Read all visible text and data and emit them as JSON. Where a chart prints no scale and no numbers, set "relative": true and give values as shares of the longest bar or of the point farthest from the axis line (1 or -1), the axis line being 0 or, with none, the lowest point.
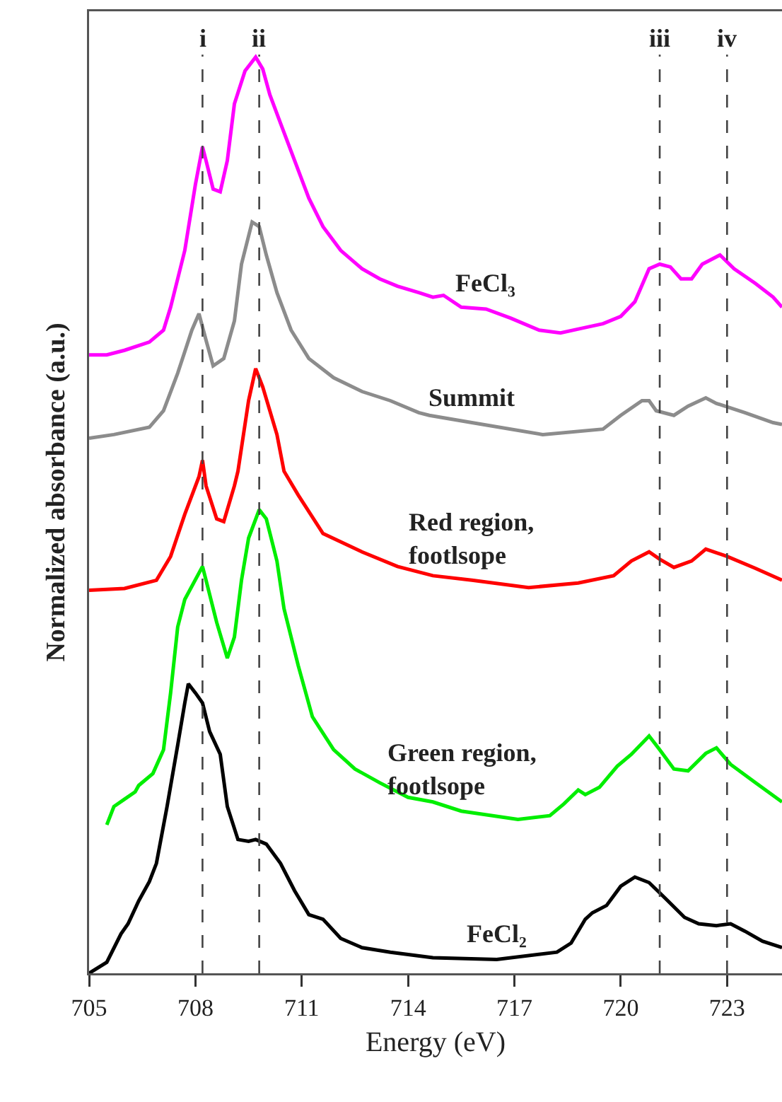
{
  "chart_data": {
    "type": "line",
    "relative": true,
    "xlabel": "Energy (eV)",
    "ylabel": "Normalized absorbance (a.u.)",
    "xlim": [
      705,
      724.55
    ],
    "xticks": [
      705,
      708,
      711,
      714,
      717,
      720,
      723
    ],
    "tick_labels": "x",
    "series": [
      {
        "name": "FeCl₃",
        "color": "#ff00ff",
        "x": [
          705.0,
          705.5,
          706.0,
          706.7,
          707.1,
          707.3,
          707.7,
          708.0,
          708.2,
          708.3,
          708.5,
          708.7,
          708.9,
          709.1,
          709.4,
          709.7,
          709.9,
          710.1,
          710.4,
          710.8,
          711.2,
          711.6,
          712.1,
          712.7,
          713.2,
          713.7,
          714.3,
          714.7,
          715.0,
          715.5,
          716.2,
          716.9,
          717.7,
          718.3,
          718.9,
          719.5,
          720.0,
          720.4,
          720.8,
          721.1,
          721.4,
          721.7,
          722.0,
          722.3,
          722.8,
          723.2,
          723.8,
          724.3,
          724.55
        ],
        "values": [
          0.675,
          0.675,
          0.68,
          0.689,
          0.702,
          0.727,
          0.789,
          0.861,
          0.902,
          0.887,
          0.856,
          0.853,
          0.887,
          0.949,
          0.985,
          1,
          0.987,
          0.959,
          0.928,
          0.887,
          0.846,
          0.815,
          0.789,
          0.769,
          0.758,
          0.75,
          0.743,
          0.738,
          0.74,
          0.727,
          0.725,
          0.715,
          0.702,
          0.699,
          0.704,
          0.709,
          0.717,
          0.733,
          0.769,
          0.774,
          0.771,
          0.758,
          0.758,
          0.774,
          0.784,
          0.769,
          0.753,
          0.738,
          0.727
        ]
      },
      {
        "name": "Summit",
        "color": "#8c8c8c",
        "x": [
          705.0,
          705.7,
          706.7,
          707.1,
          707.5,
          707.9,
          708.1,
          708.3,
          708.5,
          708.8,
          709.1,
          709.3,
          709.6,
          709.8,
          710.0,
          710.3,
          710.7,
          711.2,
          711.9,
          712.7,
          713.5,
          714.3,
          714.6,
          715.8,
          717.8,
          719.5,
          720.0,
          720.6,
          720.8,
          721.0,
          721.5,
          721.9,
          722.4,
          722.7,
          723.5,
          724.3,
          724.55
        ],
        "values": [
          0.584,
          0.588,
          0.596,
          0.614,
          0.655,
          0.702,
          0.72,
          0.691,
          0.663,
          0.671,
          0.712,
          0.774,
          0.82,
          0.815,
          0.784,
          0.743,
          0.702,
          0.671,
          0.65,
          0.635,
          0.625,
          0.612,
          0.609,
          0.601,
          0.588,
          0.594,
          0.609,
          0.625,
          0.625,
          0.614,
          0.609,
          0.619,
          0.628,
          0.622,
          0.612,
          0.601,
          0.599
        ]
      },
      {
        "name": "Red region,\nfootlsope",
        "color": "#ff0000",
        "x": [
          705.0,
          706.0,
          706.9,
          707.3,
          707.7,
          708.1,
          708.2,
          708.3,
          708.6,
          708.8,
          709.1,
          709.2,
          709.5,
          709.7,
          709.9,
          710.3,
          710.5,
          710.9,
          711.6,
          712.7,
          713.7,
          714.7,
          715.8,
          717.4,
          718.8,
          719.8,
          720.3,
          720.8,
          721.1,
          721.5,
          722.0,
          722.4,
          723.0,
          723.8,
          724.55
        ],
        "values": [
          0.418,
          0.42,
          0.429,
          0.455,
          0.501,
          0.542,
          0.56,
          0.532,
          0.496,
          0.493,
          0.532,
          0.548,
          0.625,
          0.66,
          0.64,
          0.588,
          0.548,
          0.522,
          0.48,
          0.46,
          0.444,
          0.434,
          0.429,
          0.421,
          0.426,
          0.434,
          0.45,
          0.46,
          0.452,
          0.443,
          0.45,
          0.463,
          0.455,
          0.442,
          0.429
        ]
      },
      {
        "name": "Green region,\nfootlsope",
        "color": "#00ee00",
        "x": [
          705.5,
          705.7,
          706.0,
          706.3,
          706.4,
          706.8,
          707.1,
          707.3,
          707.5,
          707.7,
          708.2,
          708.3,
          708.6,
          708.9,
          709.1,
          709.3,
          709.5,
          709.8,
          710.0,
          710.3,
          710.5,
          710.9,
          711.3,
          711.9,
          712.5,
          713.2,
          714.0,
          714.7,
          715.5,
          717.1,
          718.0,
          718.4,
          718.8,
          719.0,
          719.4,
          719.9,
          720.3,
          720.8,
          721.1,
          721.5,
          721.9,
          722.4,
          722.7,
          723.1,
          723.8,
          724.55
        ],
        "values": [
          0.162,
          0.182,
          0.19,
          0.198,
          0.205,
          0.218,
          0.244,
          0.306,
          0.378,
          0.408,
          0.444,
          0.429,
          0.383,
          0.344,
          0.367,
          0.429,
          0.475,
          0.506,
          0.496,
          0.45,
          0.398,
          0.336,
          0.28,
          0.244,
          0.223,
          0.208,
          0.192,
          0.187,
          0.177,
          0.168,
          0.172,
          0.185,
          0.2,
          0.195,
          0.203,
          0.226,
          0.239,
          0.259,
          0.244,
          0.223,
          0.221,
          0.24,
          0.246,
          0.228,
          0.208,
          0.187
        ]
      },
      {
        "name": "FeCl₂",
        "color": "#000000",
        "x": [
          705.0,
          705.5,
          705.9,
          706.1,
          706.4,
          706.7,
          706.9,
          707.2,
          707.5,
          707.7,
          707.8,
          708.0,
          708.2,
          708.4,
          708.7,
          708.9,
          709.2,
          709.5,
          709.7,
          710.0,
          710.4,
          710.8,
          711.2,
          711.6,
          712.1,
          712.7,
          713.5,
          714.7,
          716.5,
          718.2,
          718.6,
          719.0,
          719.2,
          719.6,
          720.0,
          720.4,
          720.8,
          721.2,
          721.8,
          722.2,
          722.7,
          723.1,
          723.5,
          724.0,
          724.55
        ],
        "values": [
          0,
          0.012,
          0.043,
          0.054,
          0.079,
          0.1,
          0.12,
          0.182,
          0.249,
          0.295,
          0.316,
          0.306,
          0.295,
          0.264,
          0.239,
          0.182,
          0.146,
          0.144,
          0.146,
          0.141,
          0.12,
          0.09,
          0.064,
          0.059,
          0.038,
          0.028,
          0.023,
          0.017,
          0.015,
          0.023,
          0.033,
          0.059,
          0.066,
          0.074,
          0.095,
          0.105,
          0.099,
          0.084,
          0.061,
          0.054,
          0.052,
          0.054,
          0.046,
          0.035,
          0.028
        ]
      }
    ],
    "ref_lines": [
      {
        "axis": "x",
        "value": 708.2,
        "label": "i",
        "color": "#444444",
        "line_style": "dashed"
      },
      {
        "axis": "x",
        "value": 709.8,
        "label": "ii",
        "color": "#444444",
        "line_style": "dashed"
      },
      {
        "axis": "x",
        "value": 721.1,
        "label": "iii",
        "color": "#444444",
        "line_style": "dashed"
      },
      {
        "axis": "x",
        "value": 723.0,
        "label": "iv",
        "color": "#444444",
        "line_style": "dashed"
      }
    ]
  }
}
